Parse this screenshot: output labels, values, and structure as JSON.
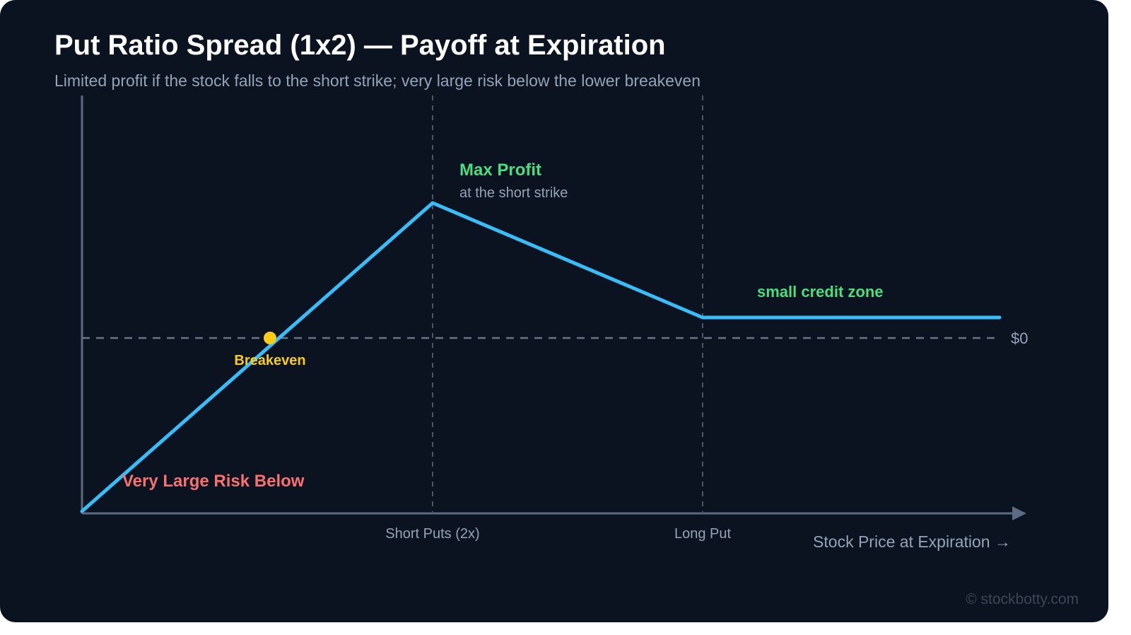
{
  "title": "Put Ratio Spread (1x2) — Payoff at Expiration",
  "subtitle": "Limited profit if the stock falls to the short strike; very large risk below the lower breakeven",
  "watermark": "© stockbotty.com",
  "chart_data": {
    "type": "line",
    "title": "Put Ratio Spread (1x2) — Payoff at Expiration",
    "xlabel": "Stock Price at Expiration →",
    "ylabel": "",
    "zero_label": "$0",
    "x_markers": [
      {
        "key": "short",
        "label": "Short Puts (2x)"
      },
      {
        "key": "long",
        "label": "Long Put"
      }
    ],
    "annotations": {
      "max_profit": "Max Profit",
      "max_profit_sub": "at the short strike",
      "credit_zone": "small credit zone",
      "breakeven": "Breakeven",
      "risk": "Very Large Risk Below"
    },
    "colors": {
      "payoff": "#38bdf8",
      "profit": "#4ade80",
      "risk": "#f87171",
      "breakeven": "#facc15",
      "axis": "#5b6b82",
      "grid": "#4a5568",
      "muted": "#94a3b8"
    }
  }
}
